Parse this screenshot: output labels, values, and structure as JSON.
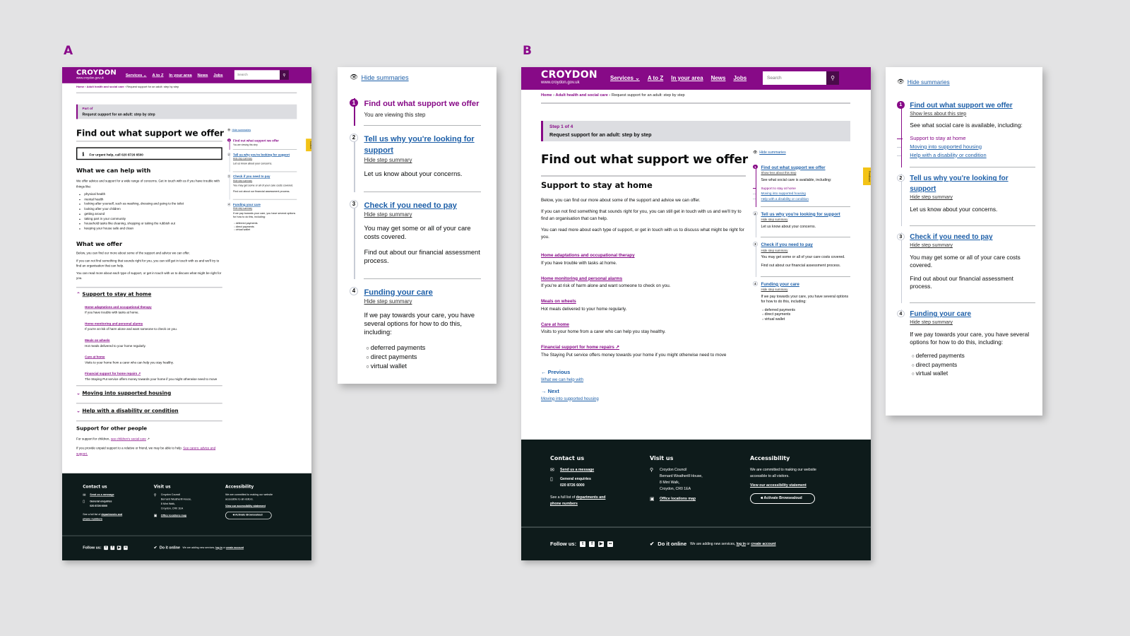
{
  "labels": {
    "a": "A",
    "b": "B"
  },
  "header": {
    "logo": "CROYDON",
    "url": "www.croydon.gov.uk",
    "nav": [
      "Services ⌄",
      "A to Z",
      "In your area",
      "News",
      "Jobs"
    ],
    "search_placeholder": "Search"
  },
  "breadcrumb": {
    "home": "Home",
    "section": "Adult health and social care",
    "current": "Request support for an adult: step by step"
  },
  "feedback": "Feedback",
  "page_a": {
    "banner_kicker": "Part of",
    "banner_title": "Request support for an adult: step by step",
    "title": "Find out what support we offer",
    "info": "For urgent help, call 020 8726 6500",
    "help_heading": "What we can help with",
    "help_intro": "We offer advice and support for a wide range of concerns. Get in touch with us if you have trouble with things like:",
    "help_items": [
      "physical health",
      "mental health",
      "looking after yourself, such as washing, dressing and going to the toilet",
      "looking after your children",
      "getting around",
      "taking part in your community",
      "household tasks like cleaning, shopping or taking the rubbish out",
      "keeping your house safe and clean"
    ],
    "offer_heading": "What we offer",
    "offer_paras": [
      "Below, you can find our more about some of the support and advice we can offer.",
      "If you can not find something that sounds right for you, you can still get in touch with us and we'll try to find an organisation that can help.",
      "You can read more about each type of support, or get in touch with us to discuss what might be right for you."
    ],
    "accordions": [
      {
        "label": "Support to stay at home",
        "open": true
      },
      {
        "label": "Moving into supported housing",
        "open": false
      },
      {
        "label": "Help with a disability or condition",
        "open": false
      }
    ],
    "other_heading": "Support for other people",
    "other_children": "For support for children, ",
    "other_children_link": "see children's social care",
    "other_carers": "If you provide unpaid support to a relative or friend, we may be able to help. ",
    "other_carers_link": "See carers: advice and support."
  },
  "services": [
    {
      "link": "Home adaptations and occupational therapy",
      "desc": "If you have trouble with tasks at home."
    },
    {
      "link": "Home monitoring and personal alarms",
      "desc": "If you're at risk of harm alone and want someone to check on you."
    },
    {
      "link": "Meals on wheels",
      "desc": "Hot meals delivered to your home regularly."
    },
    {
      "link": "Care at home",
      "desc": "Visits to your home from a carer who can help you stay healthy."
    },
    {
      "link": "Financial support for home repairs",
      "desc": "The Staying Put service offers money towards your home if you might otherwise need to move",
      "external": true
    }
  ],
  "page_b": {
    "banner_kicker": "Step 1 of 4",
    "banner_title": "Request support for an adult: step by step",
    "title": "Find out what support we offer",
    "section_heading": "Support to stay at home",
    "paras": [
      "Below, you can find our more about some of the support and advice we can offer.",
      "If you can not find something that sounds right for you, you can still get in touch with us and we'll try to find an organisation that can help.",
      "You can read more about each type of support, or get in touch with us to discuss what might be right for you."
    ],
    "previous_label": "Previous",
    "previous_link": "What we can help with",
    "next_label": "Next",
    "next_link": "Moving into supported housing"
  },
  "panel_a": {
    "hide_summaries": "Hide summaries",
    "steps": [
      {
        "num": "1",
        "title": "Find out what support we offer",
        "current": true,
        "note": "You are viewing this step"
      },
      {
        "num": "2",
        "title": "Tell us why you're looking for support",
        "toggle": "Hide step summary",
        "paras": [
          "Let us know about your concerns."
        ]
      },
      {
        "num": "3",
        "title": "Check if you need to pay",
        "toggle": "Hide step summary",
        "paras": [
          "You may get some or all of your care costs covered.",
          "Find out about our financial assessment process."
        ]
      },
      {
        "num": "4",
        "title": "Funding your care",
        "toggle": "Hide step summary",
        "paras": [
          "If we pay towards your care, you have several options for how to do this, including:"
        ],
        "bullets": [
          "deferred payments",
          "direct payments",
          "virtual wallet"
        ]
      }
    ]
  },
  "panel_b": {
    "hide_summaries": "Hide summaries",
    "steps": [
      {
        "num": "1",
        "title": "Find out what support we offer",
        "current": true,
        "toggle": "Show less about this step",
        "paras": [
          "See what social care is available, including:"
        ],
        "sublinks": [
          {
            "label": "Support to stay at home",
            "active": true
          },
          {
            "label": "Moving into supported housing"
          },
          {
            "label": "Help with a disability or condition"
          }
        ]
      },
      {
        "num": "2",
        "title": "Tell us why you're looking for support",
        "toggle": "Hide step summary",
        "paras": [
          "Let us know about your concerns."
        ]
      },
      {
        "num": "3",
        "title": "Check if you need to pay",
        "toggle": "Hide step summary",
        "paras": [
          "You may get some or all of your care costs covered.",
          "Find out about our financial assessment process."
        ]
      },
      {
        "num": "4",
        "title": "Funding your care",
        "toggle": "Hide step summary",
        "paras": [
          "If we pay towards your care, you have several options for how to do this, including:"
        ],
        "bullets": [
          "deferred payments",
          "direct payments",
          "virtual wallet"
        ]
      }
    ]
  },
  "footer": {
    "contact_heading": "Contact us",
    "send_message": "Send us a message",
    "enquiries_label": "General enquiries",
    "enquiries_phone": "020 8726 6000",
    "full_list": "See a full list of ",
    "departments_link": "departments and phone numbers",
    "visit_heading": "Visit us",
    "address": [
      "Croydon Council",
      "Bernard Weatherill House,",
      "8 Mint Walk,",
      "Croydon, CR0 1EA"
    ],
    "map_link": "Office locations map",
    "access_heading": "Accessibility",
    "access_text": "We are committed to making our website accessible to all visitors.",
    "access_link": "View our accessibility statement",
    "browsealoud": "Activate Browsealoud",
    "follow": "Follow us:",
    "social_icons": [
      "twitter-icon",
      "facebook-icon",
      "youtube-icon",
      "flickr-icon"
    ],
    "do_it": "Do it online",
    "do_it_text": "We are adding new services, ",
    "log_in": "log in",
    "or": " or ",
    "create_account": "create account"
  },
  "colors": {
    "brand": "#870a87",
    "link": "#1d5fa8",
    "footer": "#0e1b1b",
    "feedback": "#f3c316"
  }
}
